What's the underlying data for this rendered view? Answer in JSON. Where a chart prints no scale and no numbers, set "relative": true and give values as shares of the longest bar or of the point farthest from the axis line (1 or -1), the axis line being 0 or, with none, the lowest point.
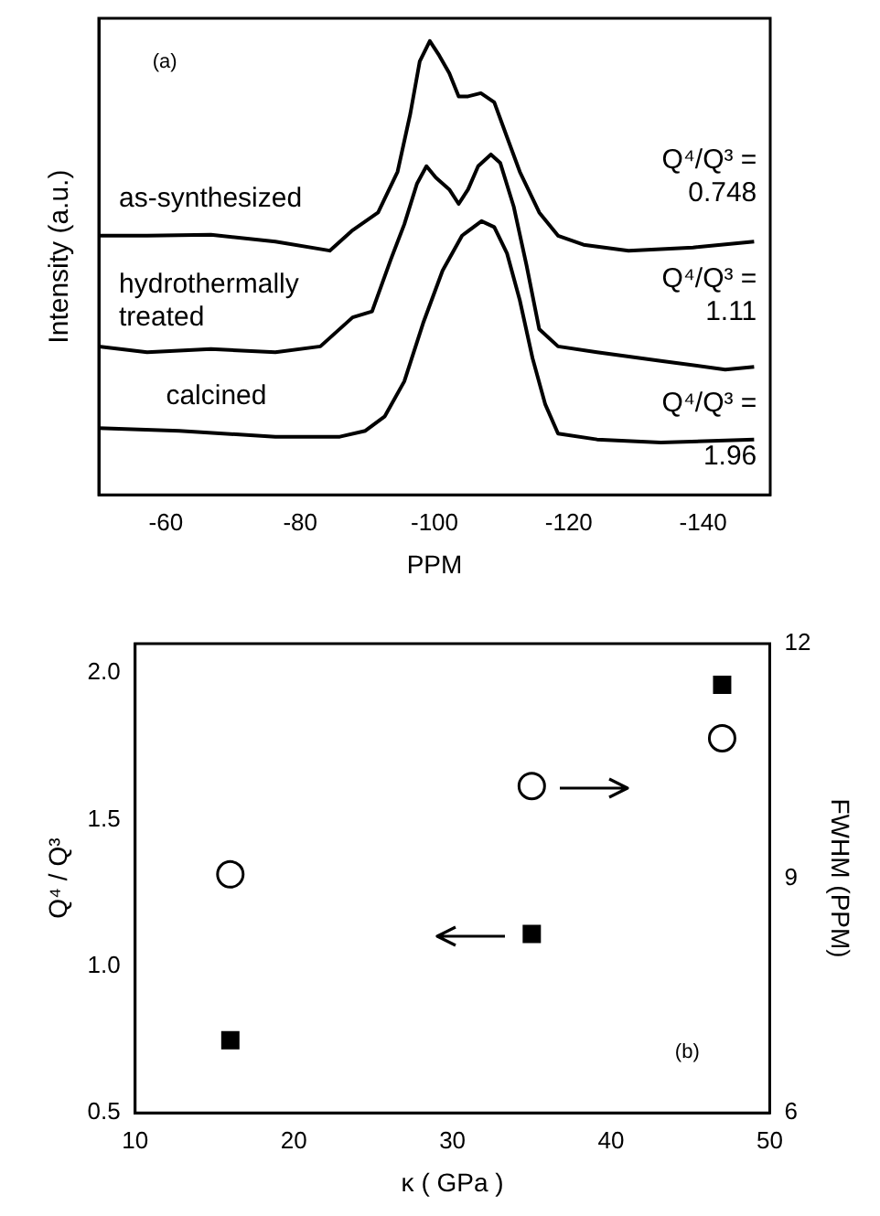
{
  "chart_data": [
    {
      "type": "line",
      "xlabel": "PPM",
      "ylabel": "Intensity (a.u.)",
      "relative": true,
      "xlim": [
        -50,
        -150
      ],
      "xticks": [
        -60,
        -80,
        -100,
        -120,
        -140
      ],
      "tick_labels": "x",
      "grid": false,
      "legend": false,
      "line_style": "solid",
      "marker": "none",
      "annotations": [
        "(a)",
        "Q⁴/Q³ =\n0.748",
        "Q⁴/Q³ =\n1.11",
        "Q⁴/Q³ =\n1.96"
      ],
      "series": [
        {
          "name": "as-synthesized",
          "color": "#000000",
          "x": [
            -50,
            -57.2,
            -66.7,
            -76.3,
            -84.4,
            -87.8,
            -91.6,
            -94.5,
            -96.4,
            -97.8,
            -99.3,
            -100.7,
            -102.2,
            -103.6,
            -105,
            -106.9,
            -108.9,
            -110.8,
            -112.7,
            -115.6,
            -118.4,
            -122.2,
            -128.9,
            -138.5,
            -147.6
          ],
          "values": [
            0.571,
            0.571,
            0.573,
            0.558,
            0.538,
            0.583,
            0.622,
            0.712,
            0.84,
            0.955,
            1,
            0.968,
            0.929,
            0.878,
            0.878,
            0.885,
            0.865,
            0.788,
            0.712,
            0.622,
            0.571,
            0.551,
            0.538,
            0.545,
            0.558
          ]
        },
        {
          "name": "hydrothermally\ntreated",
          "color": "#000000",
          "x": [
            -50,
            -57.2,
            -66.7,
            -76.3,
            -83,
            -87.8,
            -90.7,
            -93.5,
            -95.5,
            -97.4,
            -98.8,
            -100.2,
            -102.2,
            -103.6,
            -105,
            -106.5,
            -108.4,
            -109.8,
            -111.8,
            -113.7,
            -115.6,
            -118.4,
            -124.2,
            -133.7,
            -143.3,
            -147.6
          ],
          "values": [
            0.327,
            0.314,
            0.321,
            0.314,
            0.327,
            0.391,
            0.404,
            0.519,
            0.596,
            0.686,
            0.724,
            0.699,
            0.673,
            0.641,
            0.673,
            0.724,
            0.75,
            0.731,
            0.635,
            0.506,
            0.365,
            0.327,
            0.314,
            0.295,
            0.276,
            0.282
          ]
        },
        {
          "name": "calcined",
          "color": "#000000",
          "x": [
            -50,
            -62,
            -76.3,
            -85.9,
            -89.7,
            -92.6,
            -95.5,
            -98.3,
            -101.2,
            -104.1,
            -107,
            -108.9,
            -110.8,
            -112.7,
            -114.6,
            -116.5,
            -118.4,
            -124.2,
            -133.7,
            -147.6
          ],
          "values": [
            0.147,
            0.141,
            0.128,
            0.128,
            0.141,
            0.173,
            0.25,
            0.378,
            0.494,
            0.571,
            0.603,
            0.59,
            0.532,
            0.429,
            0.301,
            0.199,
            0.135,
            0.122,
            0.115,
            0.122
          ]
        }
      ]
    },
    {
      "type": "scatter",
      "xlabel": "κ ( GPa )",
      "ylabel": "Q⁴ / Q³",
      "y2label": "FWHM (PPM)",
      "xlim": [
        10,
        50
      ],
      "xticks": [
        10,
        20,
        30,
        40,
        50
      ],
      "ylim": [
        0.5,
        2.1
      ],
      "yticks": [
        0.5,
        {
          "value": 1,
          "label": "1.0"
        },
        {
          "value": 1.5,
          "label": "1.5"
        },
        {
          "value": 2,
          "label": "2.0"
        }
      ],
      "y2lim": [
        6,
        12
      ],
      "y2ticks": [
        6,
        9,
        12
      ],
      "grid": false,
      "legend": false,
      "annotations": [
        "(b)"
      ],
      "series": [
        {
          "color": "#000000",
          "marker": "square",
          "x": [
            16,
            35,
            47
          ],
          "values": [
            0.748,
            1.11,
            1.96
          ]
        },
        {
          "color": "#000000",
          "marker": "circle",
          "axis": "y2",
          "x": [
            16,
            35,
            47
          ],
          "values": [
            9.05,
            10.18,
            10.79
          ]
        }
      ]
    }
  ]
}
